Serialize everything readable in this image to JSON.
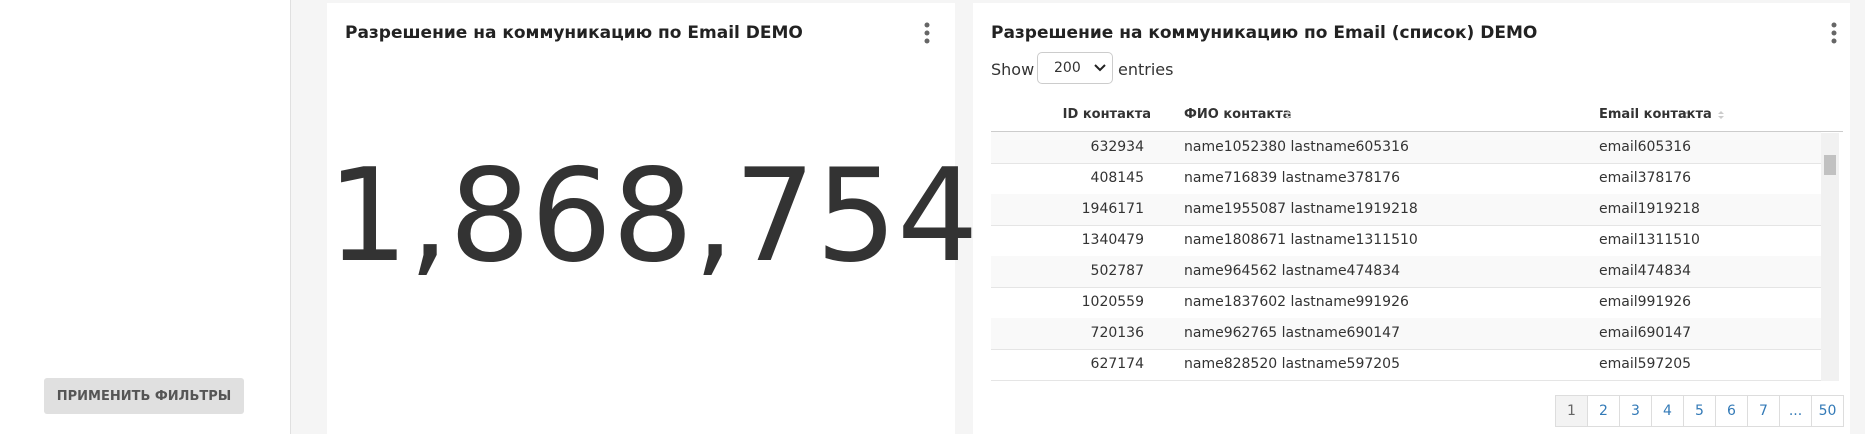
{
  "sidebar": {
    "apply_button": "ПРИМЕНИТЬ ФИЛЬТРЫ"
  },
  "kpi": {
    "title": "Разрешение на коммуникацию по Email DEMO",
    "value": "1,868,754"
  },
  "table_panel": {
    "title": "Разрешение на коммуникацию по Email (список) DEMO",
    "show_label": "Show",
    "page_length": "200",
    "entries_label": "entries",
    "columns": [
      "ID контакта",
      "ФИО контакта",
      "Email контакта"
    ],
    "rows": [
      [
        "632934",
        "name1052380 lastname605316",
        "email605316"
      ],
      [
        "408145",
        "name716839 lastname378176",
        "email378176"
      ],
      [
        "1946171",
        "name1955087 lastname1919218",
        "email1919218"
      ],
      [
        "1340479",
        "name1808671 lastname1311510",
        "email1311510"
      ],
      [
        "502787",
        "name964562 lastname474834",
        "email474834"
      ],
      [
        "1020559",
        "name1837602 lastname991926",
        "email991926"
      ],
      [
        "720136",
        "name962765 lastname690147",
        "email690147"
      ],
      [
        "627174",
        "name828520 lastname597205",
        "email597205"
      ]
    ],
    "pagination": [
      "1",
      "2",
      "3",
      "4",
      "5",
      "6",
      "7",
      "...",
      "50"
    ]
  }
}
